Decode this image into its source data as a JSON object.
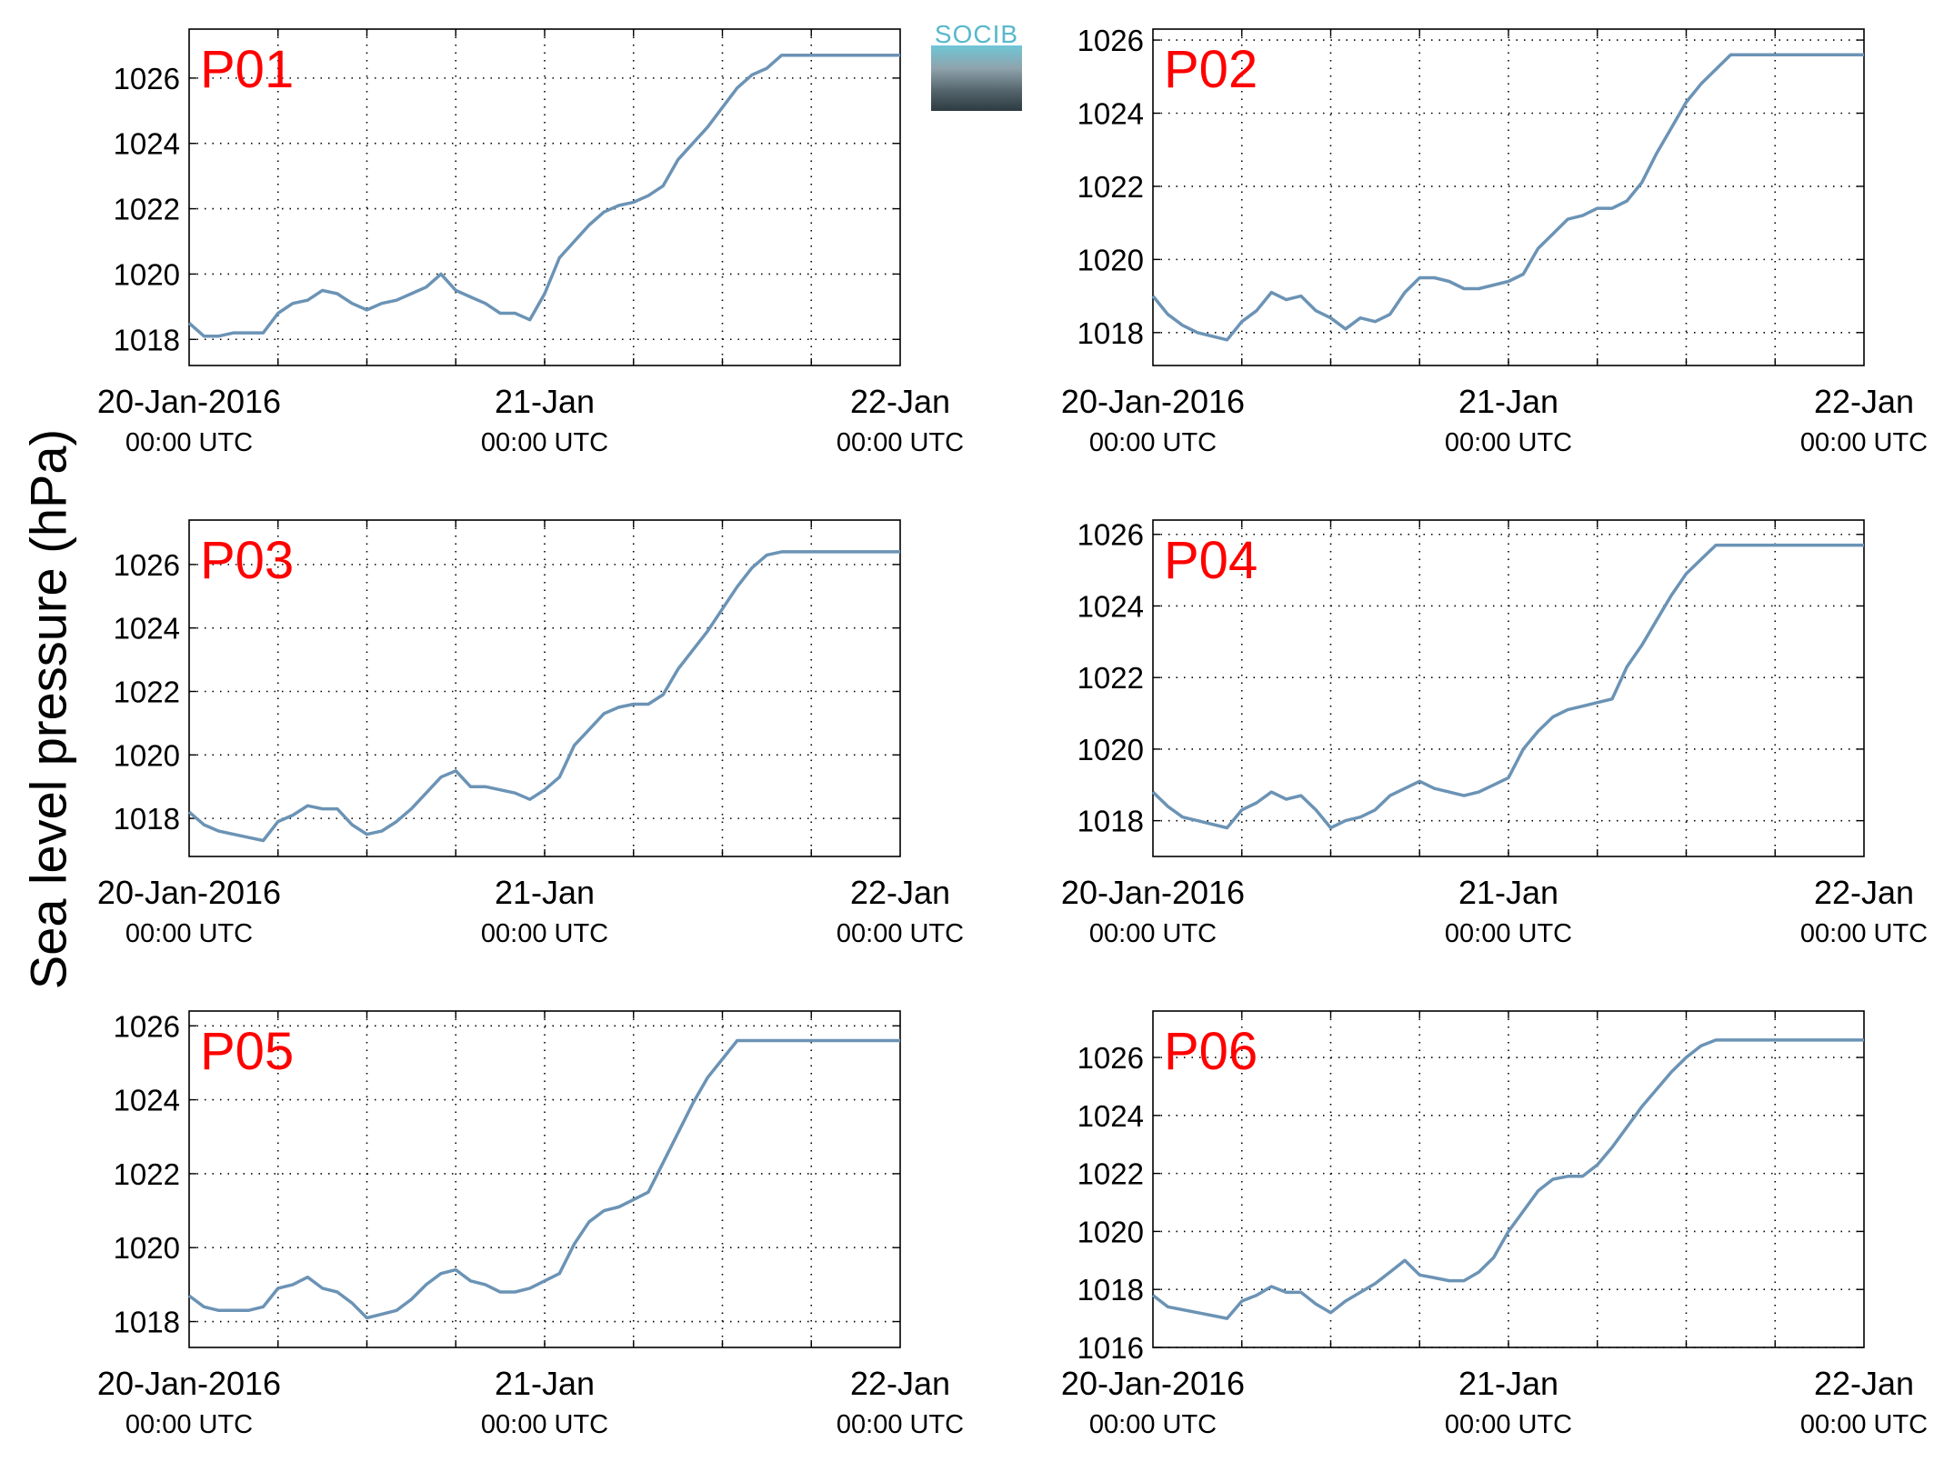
{
  "figure": {
    "ylabel": "Sea level pressure (hPa)",
    "logo_text": "SOCIB",
    "line_color": "#6b93b5",
    "label_color": "#ff0000"
  },
  "chart_data": [
    {
      "type": "line",
      "panel_label": "P01",
      "x_ticks": [
        {
          "main": "20-Jan-2016",
          "sub": "00:00 UTC",
          "hour": 0
        },
        {
          "main": "21-Jan",
          "sub": "00:00 UTC",
          "hour": 24
        },
        {
          "main": "22-Jan",
          "sub": "00:00 UTC",
          "hour": 48
        }
      ],
      "xlim_hours": [
        0,
        48
      ],
      "ylim": [
        1017.2,
        1027.5
      ],
      "yticks": [
        1018,
        1020,
        1022,
        1024,
        1026
      ],
      "grid": true,
      "series": [
        {
          "x_hours": [
            0,
            1,
            2,
            3,
            4,
            5,
            6,
            7,
            8,
            9,
            10,
            11,
            12,
            13,
            14,
            15,
            16,
            17,
            18,
            19,
            20,
            21,
            22,
            23,
            24,
            25,
            26,
            27,
            28,
            29,
            30,
            31,
            32,
            33,
            34,
            35,
            36,
            37,
            38,
            39,
            40,
            41,
            42,
            43,
            44,
            45,
            46,
            47,
            48
          ],
          "values": [
            1018.5,
            1018.1,
            1018.1,
            1018.2,
            1018.2,
            1018.2,
            1018.8,
            1019.1,
            1019.2,
            1019.5,
            1019.4,
            1019.1,
            1018.9,
            1019.1,
            1019.2,
            1019.4,
            1019.6,
            1020.0,
            1019.5,
            1019.3,
            1019.1,
            1018.8,
            1018.8,
            1018.6,
            1019.4,
            1020.5,
            1021.0,
            1021.5,
            1021.9,
            1022.1,
            1022.2,
            1022.4,
            1022.7,
            1023.5,
            1024.0,
            1024.5,
            1025.1,
            1025.7,
            1026.1,
            1026.3,
            1026.7,
            1026.7,
            1026.7,
            1026.7,
            1026.7,
            1026.7,
            1026.7,
            1026.7,
            1026.7
          ]
        }
      ]
    },
    {
      "type": "line",
      "panel_label": "P02",
      "x_ticks": [
        {
          "main": "20-Jan-2016",
          "sub": "00:00 UTC",
          "hour": 0
        },
        {
          "main": "21-Jan",
          "sub": "00:00 UTC",
          "hour": 24
        },
        {
          "main": "22-Jan",
          "sub": "00:00 UTC",
          "hour": 48
        }
      ],
      "xlim_hours": [
        0,
        48
      ],
      "ylim": [
        1017.1,
        1026.3
      ],
      "yticks": [
        1018,
        1020,
        1022,
        1024,
        1026
      ],
      "grid": true,
      "series": [
        {
          "x_hours": [
            0,
            1,
            2,
            3,
            4,
            5,
            6,
            7,
            8,
            9,
            10,
            11,
            12,
            13,
            14,
            15,
            16,
            17,
            18,
            19,
            20,
            21,
            22,
            23,
            24,
            25,
            26,
            27,
            28,
            29,
            30,
            31,
            32,
            33,
            34,
            35,
            36,
            37,
            38,
            39,
            40,
            41,
            42,
            43,
            44,
            45,
            46,
            47,
            48
          ],
          "values": [
            1019.0,
            1018.5,
            1018.2,
            1018.0,
            1017.9,
            1017.8,
            1018.3,
            1018.6,
            1019.1,
            1018.9,
            1019.0,
            1018.6,
            1018.4,
            1018.1,
            1018.4,
            1018.3,
            1018.5,
            1019.1,
            1019.5,
            1019.5,
            1019.4,
            1019.2,
            1019.2,
            1019.3,
            1019.4,
            1019.6,
            1020.3,
            1020.7,
            1021.1,
            1021.2,
            1021.4,
            1021.4,
            1021.6,
            1022.1,
            1022.9,
            1023.6,
            1024.3,
            1024.8,
            1025.2,
            1025.6,
            1025.6,
            1025.6,
            1025.6,
            1025.6,
            1025.6,
            1025.6,
            1025.6,
            1025.6,
            1025.6
          ]
        }
      ]
    },
    {
      "type": "line",
      "panel_label": "P03",
      "x_ticks": [
        {
          "main": "20-Jan-2016",
          "sub": "00:00 UTC",
          "hour": 0
        },
        {
          "main": "21-Jan",
          "sub": "00:00 UTC",
          "hour": 24
        },
        {
          "main": "22-Jan",
          "sub": "00:00 UTC",
          "hour": 48
        }
      ],
      "xlim_hours": [
        0,
        48
      ],
      "ylim": [
        1016.8,
        1027.4
      ],
      "yticks": [
        1018,
        1020,
        1022,
        1024,
        1026
      ],
      "grid": true,
      "series": [
        {
          "x_hours": [
            0,
            1,
            2,
            3,
            4,
            5,
            6,
            7,
            8,
            9,
            10,
            11,
            12,
            13,
            14,
            15,
            16,
            17,
            18,
            19,
            20,
            21,
            22,
            23,
            24,
            25,
            26,
            27,
            28,
            29,
            30,
            31,
            32,
            33,
            34,
            35,
            36,
            37,
            38,
            39,
            40,
            41,
            42,
            43,
            44,
            45,
            46,
            47,
            48
          ],
          "values": [
            1018.2,
            1017.8,
            1017.6,
            1017.5,
            1017.4,
            1017.3,
            1017.9,
            1018.1,
            1018.4,
            1018.3,
            1018.3,
            1017.8,
            1017.5,
            1017.6,
            1017.9,
            1018.3,
            1018.8,
            1019.3,
            1019.5,
            1019.0,
            1019.0,
            1018.9,
            1018.8,
            1018.6,
            1018.9,
            1019.3,
            1020.3,
            1020.8,
            1021.3,
            1021.5,
            1021.6,
            1021.6,
            1021.9,
            1022.7,
            1023.3,
            1023.9,
            1024.6,
            1025.3,
            1025.9,
            1026.3,
            1026.4,
            1026.4,
            1026.4,
            1026.4,
            1026.4,
            1026.4,
            1026.4,
            1026.4,
            1026.4
          ]
        }
      ]
    },
    {
      "type": "line",
      "panel_label": "P04",
      "x_ticks": [
        {
          "main": "20-Jan-2016",
          "sub": "00:00 UTC",
          "hour": 0
        },
        {
          "main": "21-Jan",
          "sub": "00:00 UTC",
          "hour": 24
        },
        {
          "main": "22-Jan",
          "sub": "00:00 UTC",
          "hour": 48
        }
      ],
      "xlim_hours": [
        0,
        48
      ],
      "ylim": [
        1017.0,
        1026.4
      ],
      "yticks": [
        1018,
        1020,
        1022,
        1024,
        1026
      ],
      "grid": true,
      "series": [
        {
          "x_hours": [
            0,
            1,
            2,
            3,
            4,
            5,
            6,
            7,
            8,
            9,
            10,
            11,
            12,
            13,
            14,
            15,
            16,
            17,
            18,
            19,
            20,
            21,
            22,
            23,
            24,
            25,
            26,
            27,
            28,
            29,
            30,
            31,
            32,
            33,
            34,
            35,
            36,
            37,
            38,
            39,
            40,
            41,
            42,
            43,
            44,
            45,
            46,
            47,
            48
          ],
          "values": [
            1018.8,
            1018.4,
            1018.1,
            1018.0,
            1017.9,
            1017.8,
            1018.3,
            1018.5,
            1018.8,
            1018.6,
            1018.7,
            1018.3,
            1017.8,
            1018.0,
            1018.1,
            1018.3,
            1018.7,
            1018.9,
            1019.1,
            1018.9,
            1018.8,
            1018.7,
            1018.8,
            1019.0,
            1019.2,
            1020.0,
            1020.5,
            1020.9,
            1021.1,
            1021.2,
            1021.3,
            1021.4,
            1022.3,
            1022.9,
            1023.6,
            1024.3,
            1024.9,
            1025.3,
            1025.7,
            1025.7,
            1025.7,
            1025.7,
            1025.7,
            1025.7,
            1025.7,
            1025.7,
            1025.7,
            1025.7,
            1025.7
          ]
        }
      ]
    },
    {
      "type": "line",
      "panel_label": "P05",
      "x_ticks": [
        {
          "main": "20-Jan-2016",
          "sub": "00:00 UTC",
          "hour": 0
        },
        {
          "main": "21-Jan",
          "sub": "00:00 UTC",
          "hour": 24
        },
        {
          "main": "22-Jan",
          "sub": "00:00 UTC",
          "hour": 48
        }
      ],
      "xlim_hours": [
        0,
        48
      ],
      "ylim": [
        1017.3,
        1026.4
      ],
      "yticks": [
        1018,
        1020,
        1022,
        1024,
        1026
      ],
      "grid": true,
      "series": [
        {
          "x_hours": [
            0,
            1,
            2,
            3,
            4,
            5,
            6,
            7,
            8,
            9,
            10,
            11,
            12,
            13,
            14,
            15,
            16,
            17,
            18,
            19,
            20,
            21,
            22,
            23,
            24,
            25,
            26,
            27,
            28,
            29,
            30,
            31,
            32,
            33,
            34,
            35,
            36,
            37,
            38,
            39,
            40,
            41,
            42,
            43,
            44,
            45,
            46,
            47,
            48
          ],
          "values": [
            1018.7,
            1018.4,
            1018.3,
            1018.3,
            1018.3,
            1018.4,
            1018.9,
            1019.0,
            1019.2,
            1018.9,
            1018.8,
            1018.5,
            1018.1,
            1018.2,
            1018.3,
            1018.6,
            1019.0,
            1019.3,
            1019.4,
            1019.1,
            1019.0,
            1018.8,
            1018.8,
            1018.9,
            1019.1,
            1019.3,
            1020.1,
            1020.7,
            1021.0,
            1021.1,
            1021.3,
            1021.5,
            1022.3,
            1023.1,
            1023.9,
            1024.6,
            1025.1,
            1025.6,
            1025.6,
            1025.6,
            1025.6,
            1025.6,
            1025.6,
            1025.6,
            1025.6,
            1025.6,
            1025.6,
            1025.6,
            1025.6
          ]
        }
      ]
    },
    {
      "type": "line",
      "panel_label": "P06",
      "x_ticks": [
        {
          "main": "20-Jan-2016",
          "sub": "00:00 UTC",
          "hour": 0
        },
        {
          "main": "21-Jan",
          "sub": "00:00 UTC",
          "hour": 24
        },
        {
          "main": "22-Jan",
          "sub": "00:00 UTC",
          "hour": 48
        }
      ],
      "xlim_hours": [
        0,
        48
      ],
      "ylim": [
        1016.0,
        1027.6
      ],
      "yticks": [
        1016,
        1018,
        1020,
        1022,
        1024,
        1026
      ],
      "grid": true,
      "series": [
        {
          "x_hours": [
            0,
            1,
            2,
            3,
            4,
            5,
            6,
            7,
            8,
            9,
            10,
            11,
            12,
            13,
            14,
            15,
            16,
            17,
            18,
            19,
            20,
            21,
            22,
            23,
            24,
            25,
            26,
            27,
            28,
            29,
            30,
            31,
            32,
            33,
            34,
            35,
            36,
            37,
            38,
            39,
            40,
            41,
            42,
            43,
            44,
            45,
            46,
            47,
            48
          ],
          "values": [
            1017.8,
            1017.4,
            1017.3,
            1017.2,
            1017.1,
            1017.0,
            1017.6,
            1017.8,
            1018.1,
            1017.9,
            1017.9,
            1017.5,
            1017.2,
            1017.6,
            1017.9,
            1018.2,
            1018.6,
            1019.0,
            1018.5,
            1018.4,
            1018.3,
            1018.3,
            1018.6,
            1019.1,
            1020.0,
            1020.7,
            1021.4,
            1021.8,
            1021.9,
            1021.9,
            1022.3,
            1022.9,
            1023.6,
            1024.3,
            1024.9,
            1025.5,
            1026.0,
            1026.4,
            1026.6,
            1026.6,
            1026.6,
            1026.6,
            1026.6,
            1026.6,
            1026.6,
            1026.6,
            1026.6,
            1026.6,
            1026.6
          ]
        }
      ]
    }
  ]
}
